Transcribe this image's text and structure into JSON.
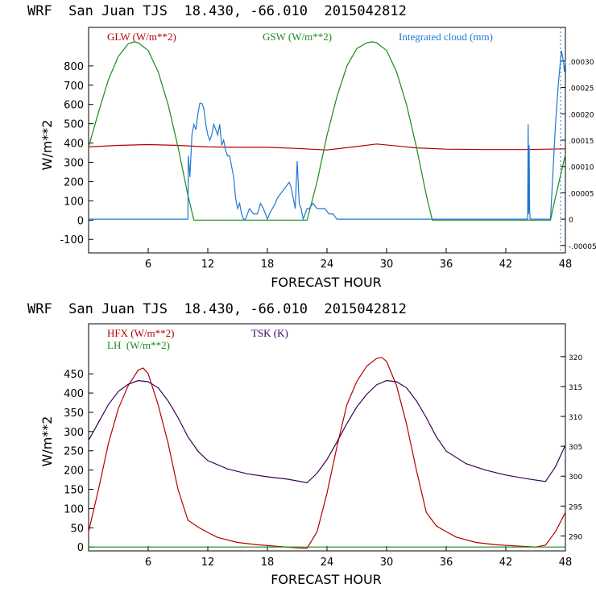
{
  "colors": {
    "red": "#b30000",
    "green": "#1a8a1a",
    "blue": "#1f78d1",
    "purple": "#3a0057",
    "axis": "#000000"
  },
  "charts": [
    {
      "title": "WRF  San Juan TJS  18.430, -66.010  2015042812",
      "xlabel": "FORECAST HOUR",
      "ylabel": "W/m**2",
      "x_ticks": [
        "6",
        "12",
        "18",
        "24",
        "30",
        "36",
        "42",
        "48"
      ],
      "y_ticks": [
        "-100",
        "0",
        "100",
        "200",
        "300",
        "400",
        "500",
        "600",
        "700",
        "800"
      ],
      "right_ticks": [
        ".00030",
        ".00025",
        ".00020",
        ".00015",
        ".00010",
        ".00005",
        "0",
        "-.00005"
      ],
      "legend": [
        {
          "label": "GLW (W/m**2)",
          "color": "red"
        },
        {
          "label": "GSW (W/m**2)",
          "color": "green"
        },
        {
          "label": "Integrated cloud (mm)",
          "color": "blue"
        }
      ]
    },
    {
      "title": "WRF  San Juan TJS  18.430, -66.010  2015042812",
      "xlabel": "FORECAST HOUR",
      "ylabel": "W/m**2",
      "x_ticks": [
        "6",
        "12",
        "18",
        "24",
        "30",
        "36",
        "42",
        "48"
      ],
      "y_ticks": [
        "0",
        "50",
        "100",
        "150",
        "200",
        "250",
        "300",
        "350",
        "400",
        "450"
      ],
      "right_ticks": [
        "320",
        "315",
        "310",
        "305",
        "300",
        "295",
        "290"
      ],
      "legend": [
        {
          "label": "HFX (W/m**2)",
          "color": "red"
        },
        {
          "label": "LH  (W/m**2)",
          "color": "green"
        },
        {
          "label": "TSK (K)",
          "color": "purple"
        }
      ]
    }
  ],
  "chart_data": [
    {
      "type": "line",
      "title": "WRF  San Juan TJS  18.430, -66.010  2015042812",
      "xlabel": "FORECAST HOUR",
      "ylabel": "W/m**2",
      "xlim": [
        0,
        48
      ],
      "ylim": [
        -170,
        1000
      ],
      "y2lim": [
        -6.4e-05,
        0.000364
      ],
      "x_ticks": [
        6,
        12,
        18,
        24,
        30,
        36,
        42,
        48
      ],
      "y_ticks": [
        -100,
        0,
        100,
        200,
        300,
        400,
        500,
        600,
        700,
        800
      ],
      "y2_ticks": [
        0.0003,
        0.00025,
        0.0002,
        0.00015,
        0.0001,
        5e-05,
        0,
        -5e-05
      ],
      "series": [
        {
          "name": "GLW (W/m**2)",
          "color": "red",
          "axis": "left",
          "x": [
            0,
            3,
            6,
            9,
            12,
            15,
            18,
            21,
            24,
            27,
            29,
            31,
            33,
            36,
            40,
            44,
            48
          ],
          "y": [
            380,
            388,
            392,
            388,
            380,
            378,
            378,
            372,
            364,
            382,
            395,
            385,
            375,
            368,
            366,
            366,
            370
          ]
        },
        {
          "name": "GSW (W/m**2)",
          "color": "green",
          "axis": "left",
          "x": [
            0,
            1,
            2,
            3,
            4,
            4.6,
            5,
            6,
            7,
            8,
            9,
            10,
            10.6,
            22,
            23,
            24,
            25,
            26,
            27,
            28,
            28.6,
            29,
            30,
            31,
            32,
            33,
            34,
            34.6,
            46.5,
            47,
            48
          ],
          "y": [
            380,
            560,
            730,
            850,
            915,
            925,
            920,
            880,
            770,
            600,
            380,
            130,
            0,
            0,
            200,
            440,
            640,
            800,
            890,
            920,
            925,
            920,
            880,
            770,
            600,
            380,
            130,
            0,
            0,
            120,
            340
          ]
        },
        {
          "name": "Integrated cloud (mm)",
          "color": "blue",
          "axis": "right",
          "x": [
            0,
            10,
            10.05,
            10.2,
            10.4,
            10.6,
            10.8,
            11.0,
            11.2,
            11.4,
            11.6,
            11.8,
            12.0,
            12.2,
            12.4,
            12.6,
            12.8,
            13.0,
            13.2,
            13.4,
            13.6,
            13.8,
            14.0,
            14.2,
            14.4,
            14.6,
            14.8,
            15.0,
            15.2,
            15.4,
            15.6,
            15.8,
            16.0,
            16.2,
            16.6,
            17.0,
            17.3,
            17.6,
            18.0,
            18.2,
            18.5,
            18.8,
            19.0,
            19.4,
            19.8,
            20.2,
            20.4,
            20.6,
            20.8,
            21.0,
            21.2,
            21.4,
            21.6,
            22.0,
            22.2,
            22.6,
            23.0,
            23.4,
            23.8,
            24.2,
            24.6,
            25.0,
            44.2,
            44.25,
            44.3,
            44.35,
            44.4,
            44.45,
            45,
            46,
            46.5,
            47,
            47.3,
            47.6,
            47.8,
            47.9,
            48
          ],
          "y": [
            0,
            0,
            0.00012,
            8e-05,
            0.00016,
            0.00018,
            0.00017,
            0.0002,
            0.00022,
            0.00022,
            0.00021,
            0.00018,
            0.00016,
            0.00015,
            0.00016,
            0.00018,
            0.00017,
            0.00016,
            0.00018,
            0.00014,
            0.00015,
            0.00013,
            0.00012,
            0.00012,
            0.0001,
            8e-05,
            4e-05,
            2e-05,
            3e-05,
            1e-05,
            0,
            0,
            1e-05,
            2e-05,
            1e-05,
            1e-05,
            3e-05,
            2e-05,
            0,
            1e-05,
            2e-05,
            3e-05,
            4e-05,
            5e-05,
            6e-05,
            7e-05,
            6e-05,
            4e-05,
            2e-05,
            0.00011,
            3e-05,
            2e-05,
            0,
            2e-05,
            2e-05,
            3e-05,
            2e-05,
            2e-05,
            2e-05,
            1e-05,
            1e-05,
            0,
            0,
            0.00018,
            1e-05,
            0.00014,
            2e-05,
            0,
            0,
            0,
            0,
            0.00018,
            0.00026,
            0.00032,
            0.0003,
            0.00028,
            0.0003
          ]
        }
      ]
    },
    {
      "type": "line",
      "title": "WRF  San Juan TJS  18.430, -66.010  2015042812",
      "xlabel": "FORECAST HOUR",
      "ylabel": "W/m**2",
      "xlim": [
        0,
        48
      ],
      "ylim": [
        -10,
        580
      ],
      "y2lim": [
        287.5,
        325.5
      ],
      "x_ticks": [
        6,
        12,
        18,
        24,
        30,
        36,
        42,
        48
      ],
      "y_ticks": [
        0,
        50,
        100,
        150,
        200,
        250,
        300,
        350,
        400,
        450
      ],
      "y2_ticks": [
        320,
        315,
        310,
        305,
        300,
        295,
        290
      ],
      "series": [
        {
          "name": "HFX (W/m**2)",
          "color": "red",
          "axis": "left",
          "x": [
            0,
            1,
            2,
            3,
            4,
            5,
            5.5,
            6,
            7,
            8,
            9,
            10,
            11,
            12,
            13,
            15,
            17,
            19,
            21,
            22,
            23,
            24,
            25,
            26,
            27,
            28,
            29,
            29.5,
            30,
            31,
            32,
            33,
            34,
            35,
            36,
            37,
            39,
            41,
            43,
            45,
            46,
            47,
            48
          ],
          "y": [
            40,
            150,
            270,
            360,
            420,
            460,
            465,
            450,
            370,
            270,
            150,
            70,
            52,
            38,
            25,
            12,
            6,
            2,
            -2,
            -3,
            40,
            140,
            260,
            370,
            430,
            470,
            490,
            493,
            482,
            420,
            320,
            200,
            90,
            55,
            40,
            26,
            12,
            6,
            3,
            0,
            5,
            40,
            90
          ]
        },
        {
          "name": "LH  (W/m**2)",
          "color": "green",
          "axis": "left",
          "x": [
            0,
            48
          ],
          "y": [
            0,
            0
          ]
        },
        {
          "name": "TSK (K)",
          "color": "purple",
          "axis": "right",
          "x": [
            0,
            1,
            2,
            3,
            4,
            5,
            6,
            7,
            8,
            9,
            10,
            11,
            12,
            14,
            16,
            18,
            20,
            22,
            23,
            24,
            25,
            26,
            27,
            28,
            29,
            30,
            31,
            32,
            33,
            34,
            35,
            36,
            38,
            40,
            42,
            44,
            46,
            47,
            48
          ],
          "y": [
            306,
            309,
            312,
            314.2,
            315.4,
            316,
            315.8,
            314.8,
            312.6,
            309.8,
            306.6,
            304.2,
            302.6,
            301.2,
            300.4,
            299.9,
            299.5,
            298.9,
            300.5,
            302.8,
            305.7,
            308.8,
            311.6,
            313.7,
            315.3,
            316,
            315.8,
            314.8,
            312.6,
            309.8,
            306.6,
            304.2,
            302.1,
            301.0,
            300.2,
            299.6,
            299.1,
            301.6,
            305.2
          ]
        }
      ]
    }
  ]
}
